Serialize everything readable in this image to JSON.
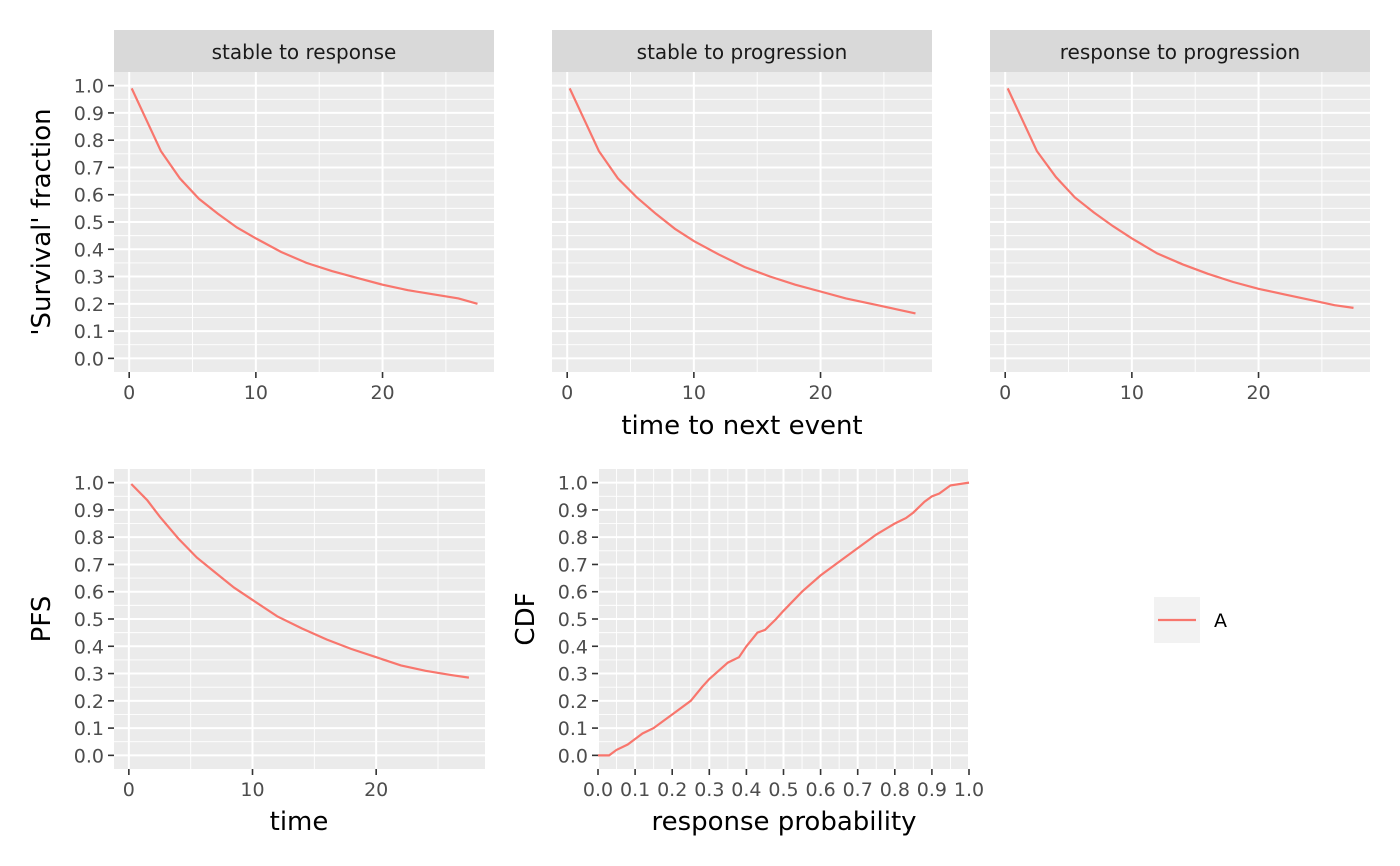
{
  "colors": {
    "panel_bg": "#EBEBEB",
    "grid": "#FFFFFF",
    "strip_bg": "#D9D9D9",
    "series": "#F8766D",
    "tick": "#333333"
  },
  "chart_data": [
    {
      "type": "line",
      "facet": "stable to response",
      "xlabel": "",
      "ylabel": "'Survival' fraction",
      "xlim": [
        -1.2,
        28.8
      ],
      "ylim": [
        -0.05,
        1.05
      ],
      "xticks": [
        0,
        10,
        20
      ],
      "yticks": [
        0.0,
        0.1,
        0.2,
        0.3,
        0.4,
        0.5,
        0.6,
        0.7,
        0.8,
        0.9,
        1.0
      ],
      "series": [
        {
          "x": [
            0.2,
            1.5,
            2.5,
            4,
            5.5,
            7,
            8.5,
            10,
            12,
            14,
            16,
            18,
            20,
            22,
            24,
            26,
            27.5
          ],
          "values": [
            0.99,
            0.86,
            0.76,
            0.66,
            0.585,
            0.53,
            0.48,
            0.44,
            0.39,
            0.35,
            0.32,
            0.295,
            0.27,
            0.25,
            0.235,
            0.22,
            0.2
          ]
        }
      ]
    },
    {
      "type": "line",
      "facet": "stable to progression",
      "xlabel": "time to next event",
      "ylabel": "",
      "xlim": [
        -1.2,
        28.8
      ],
      "ylim": [
        -0.05,
        1.05
      ],
      "xticks": [
        0,
        10,
        20
      ],
      "yticks": [
        0.0,
        0.1,
        0.2,
        0.3,
        0.4,
        0.5,
        0.6,
        0.7,
        0.8,
        0.9,
        1.0
      ],
      "series": [
        {
          "x": [
            0.2,
            1.5,
            2.5,
            4,
            5.5,
            7,
            8.5,
            10,
            12,
            14,
            16,
            18,
            20,
            22,
            24,
            26,
            27.5
          ],
          "values": [
            0.99,
            0.86,
            0.76,
            0.66,
            0.59,
            0.53,
            0.475,
            0.43,
            0.38,
            0.335,
            0.3,
            0.27,
            0.245,
            0.22,
            0.2,
            0.18,
            0.165
          ]
        }
      ]
    },
    {
      "type": "line",
      "facet": "response to progression",
      "xlabel": "",
      "ylabel": "",
      "xlim": [
        -1.2,
        28.8
      ],
      "ylim": [
        -0.05,
        1.05
      ],
      "xticks": [
        0,
        10,
        20
      ],
      "yticks": [
        0.0,
        0.1,
        0.2,
        0.3,
        0.4,
        0.5,
        0.6,
        0.7,
        0.8,
        0.9,
        1.0
      ],
      "series": [
        {
          "x": [
            0.2,
            1.5,
            2.5,
            4,
            5.5,
            7,
            8.5,
            10,
            12,
            14,
            16,
            18,
            20,
            22,
            24,
            26,
            27.5
          ],
          "values": [
            0.99,
            0.86,
            0.76,
            0.665,
            0.59,
            0.535,
            0.485,
            0.44,
            0.385,
            0.345,
            0.31,
            0.28,
            0.255,
            0.235,
            0.215,
            0.195,
            0.185
          ]
        }
      ]
    },
    {
      "type": "line",
      "xlabel": "time",
      "ylabel": "PFS",
      "xlim": [
        -1.2,
        28.8
      ],
      "ylim": [
        -0.05,
        1.05
      ],
      "xticks": [
        0,
        10,
        20
      ],
      "yticks": [
        0.0,
        0.1,
        0.2,
        0.3,
        0.4,
        0.5,
        0.6,
        0.7,
        0.8,
        0.9,
        1.0
      ],
      "series": [
        {
          "x": [
            0.2,
            1.5,
            2.5,
            4,
            5.5,
            7,
            8.5,
            10,
            12,
            14,
            16,
            18,
            20,
            22,
            24,
            26,
            27.5
          ],
          "values": [
            0.995,
            0.935,
            0.875,
            0.795,
            0.725,
            0.67,
            0.615,
            0.57,
            0.51,
            0.465,
            0.425,
            0.39,
            0.36,
            0.33,
            0.31,
            0.295,
            0.285
          ]
        }
      ]
    },
    {
      "type": "line",
      "xlabel": "response probability",
      "ylabel": "CDF",
      "xlim": [
        0.0,
        1.0
      ],
      "ylim": [
        -0.05,
        1.05
      ],
      "xticks": [
        0.0,
        0.1,
        0.2,
        0.3,
        0.4,
        0.5,
        0.6,
        0.7,
        0.8,
        0.9,
        1.0
      ],
      "xtick_labels": [
        "0.0",
        "0.1",
        "0.2",
        "0.3",
        "0.4",
        "0.5",
        "0.6",
        "0.7",
        "0.8",
        "0.9",
        "1.0"
      ],
      "yticks": [
        0.0,
        0.1,
        0.2,
        0.3,
        0.4,
        0.5,
        0.6,
        0.7,
        0.8,
        0.9,
        1.0
      ],
      "series": [
        {
          "x": [
            0.0,
            0.03,
            0.05,
            0.08,
            0.1,
            0.12,
            0.15,
            0.18,
            0.2,
            0.25,
            0.28,
            0.3,
            0.35,
            0.38,
            0.4,
            0.43,
            0.45,
            0.48,
            0.5,
            0.55,
            0.6,
            0.65,
            0.7,
            0.75,
            0.8,
            0.83,
            0.85,
            0.88,
            0.9,
            0.92,
            0.95,
            1.0
          ],
          "values": [
            0.0,
            0.0,
            0.02,
            0.04,
            0.06,
            0.08,
            0.1,
            0.13,
            0.15,
            0.2,
            0.25,
            0.28,
            0.34,
            0.36,
            0.4,
            0.45,
            0.46,
            0.5,
            0.53,
            0.6,
            0.66,
            0.71,
            0.76,
            0.81,
            0.85,
            0.87,
            0.89,
            0.93,
            0.95,
            0.96,
            0.99,
            1.0
          ]
        }
      ]
    }
  ],
  "legend": {
    "entries": [
      {
        "label": "A",
        "color": "#F8766D"
      }
    ]
  }
}
